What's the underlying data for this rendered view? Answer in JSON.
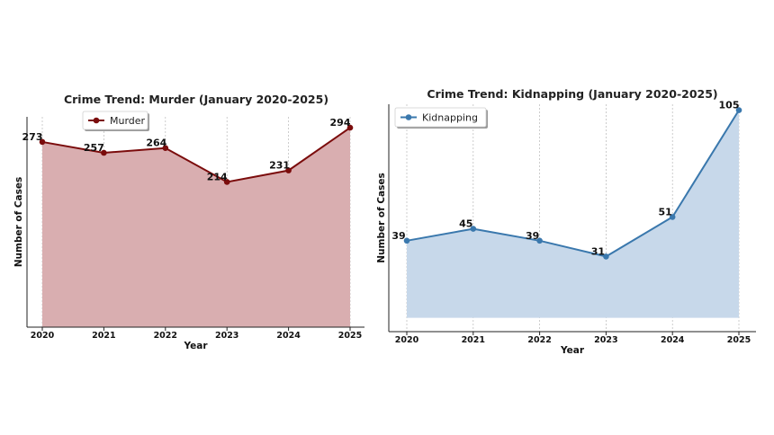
{
  "chart_data": [
    {
      "type": "area",
      "title": "Crime Trend: Murder (January 2020-2025)",
      "xlabel": "Year",
      "ylabel": "Number of Cases",
      "categories": [
        "2020",
        "2021",
        "2022",
        "2023",
        "2024",
        "2025"
      ],
      "series": [
        {
          "name": "Murder",
          "values": [
            273,
            257,
            264,
            214,
            231,
            294
          ]
        }
      ],
      "ylim": [
        0,
        310
      ],
      "y_ticks_shown": false,
      "grid": "vertical dashed",
      "legend": "top-left",
      "colors": {
        "line": "#7b0c0c",
        "fill": "#d9aeb0"
      }
    },
    {
      "type": "area",
      "title": "Crime Trend: Kidnapping (January 2020-2025)",
      "xlabel": "Year",
      "ylabel": "Number of Cases",
      "categories": [
        "2020",
        "2021",
        "2022",
        "2023",
        "2024",
        "2025"
      ],
      "series": [
        {
          "name": "Kidnapping",
          "values": [
            39,
            45,
            39,
            31,
            51,
            105
          ]
        }
      ],
      "ylim": [
        -7,
        108
      ],
      "y_ticks_shown": false,
      "grid": "vertical dashed",
      "legend": "top-left",
      "colors": {
        "line": "#3a78ad",
        "fill": "#c7d8ea"
      }
    }
  ]
}
